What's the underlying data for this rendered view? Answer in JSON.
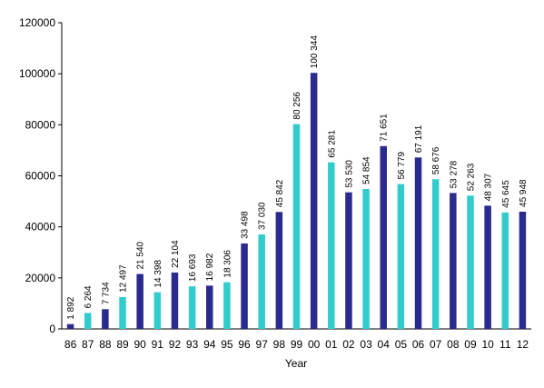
{
  "chart_data": {
    "type": "bar",
    "title": "",
    "xlabel": "Year",
    "ylabel": "",
    "ylim": [
      0,
      120000
    ],
    "yticks": [
      0,
      20000,
      40000,
      60000,
      80000,
      100000,
      120000
    ],
    "yticks_labels": [
      "0",
      "20000",
      "40000",
      "60000",
      "80000",
      "100000",
      "120000"
    ],
    "grid": false,
    "legend": "none",
    "categories": [
      "86",
      "87",
      "88",
      "89",
      "90",
      "91",
      "92",
      "93",
      "94",
      "95",
      "96",
      "97",
      "98",
      "99",
      "00",
      "01",
      "02",
      "03",
      "04",
      "05",
      "06",
      "07",
      "08",
      "09",
      "10",
      "11",
      "12"
    ],
    "values": [
      1892,
      6264,
      7734,
      12497,
      21540,
      14398,
      22104,
      16693,
      16982,
      18306,
      33498,
      37030,
      45842,
      80256,
      100344,
      65281,
      53530,
      54854,
      71651,
      56779,
      67191,
      58676,
      53278,
      52263,
      48307,
      45645,
      45948
    ],
    "value_labels": [
      "1 892",
      "6 264",
      "7 734",
      "12 497",
      "21 540",
      "14 398",
      "22 104",
      "16 693",
      "16 982",
      "18 306",
      "33 498",
      "37 030",
      "45 842",
      "80 256",
      "100 344",
      "65 281",
      "53 530",
      "54 854",
      "71 651",
      "56 779",
      "67 191",
      "58 676",
      "53 278",
      "52 263",
      "48 307",
      "45 645",
      "45 948"
    ],
    "colors": [
      "#2b2b8f",
      "#33cccc"
    ]
  }
}
